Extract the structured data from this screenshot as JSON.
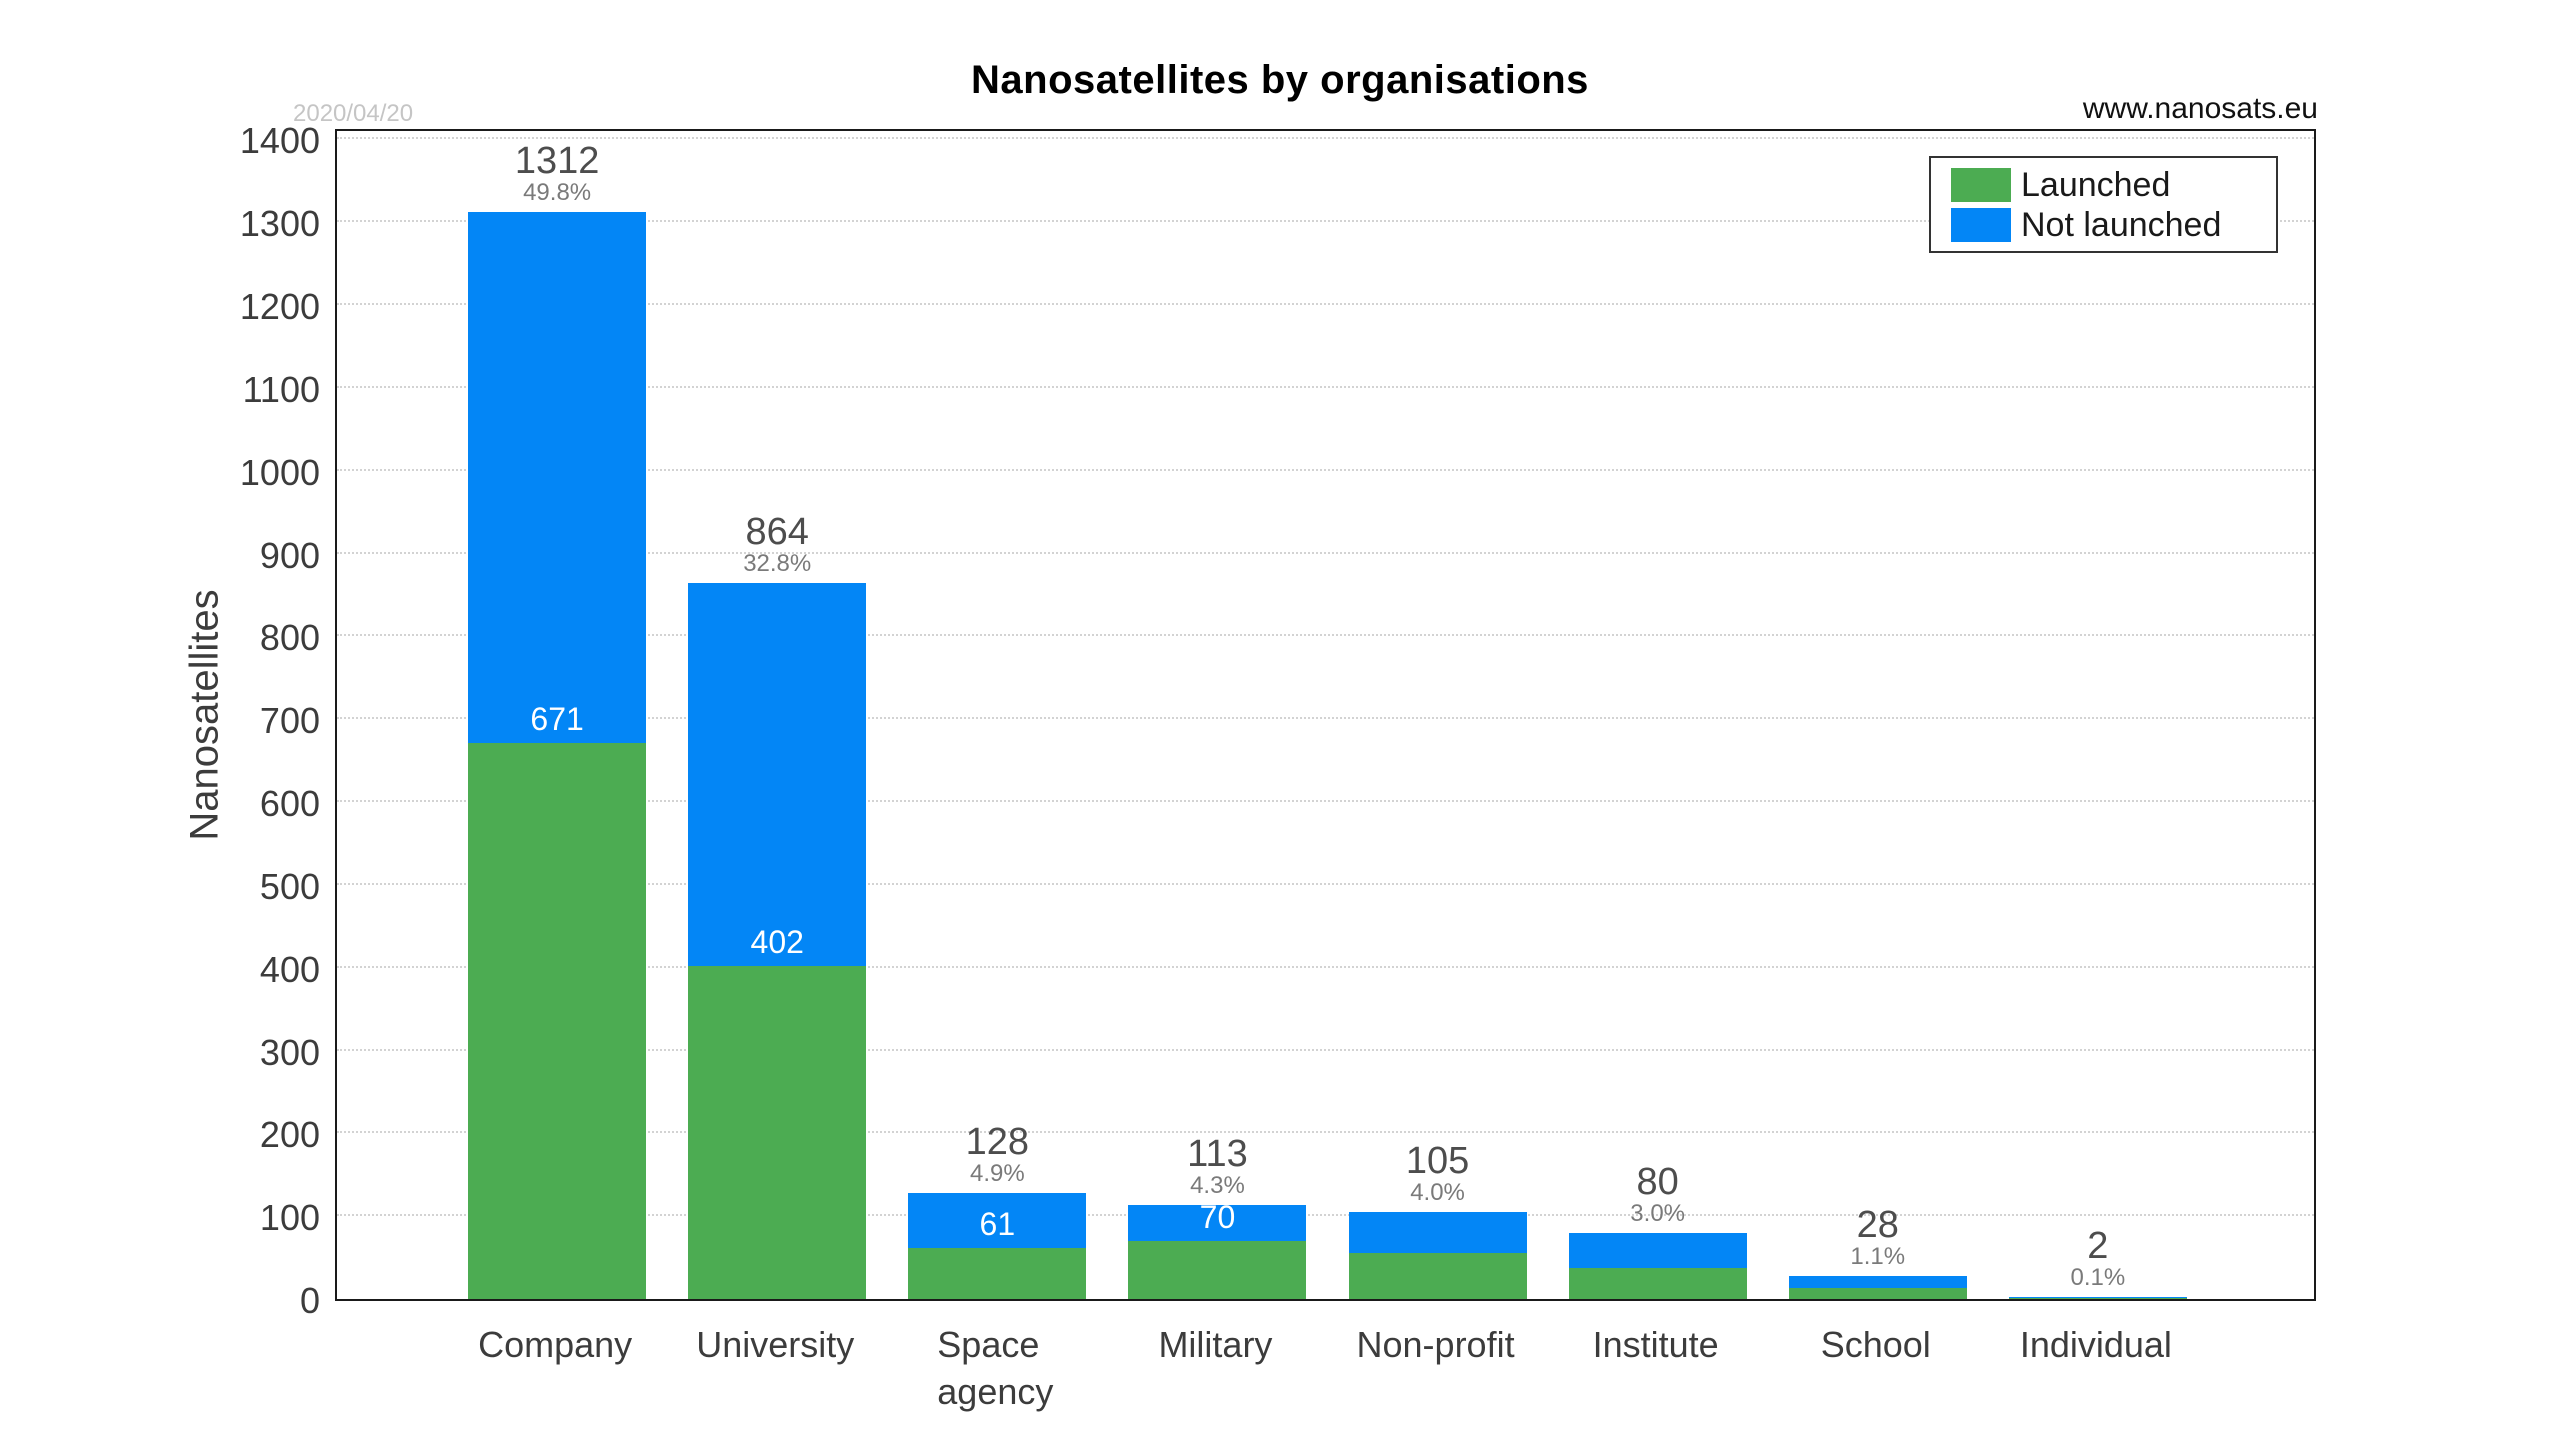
{
  "title": "Nanosatellites by organisations",
  "watermark": "www.nanosats.eu",
  "date_stamp": "2020/04/20",
  "colors": {
    "launched_green": "#4CAC52",
    "not_launched_blue": "#0386F6",
    "grid": "#d3d3d3",
    "axis_border": "#1a1a1a",
    "total_label": "#4d4d4d",
    "percent_label": "#7a7a7a",
    "tick_label": "#3c3c3c",
    "date_stamp": "#c5c5c5"
  },
  "legend": {
    "position": "top-right",
    "items": [
      {
        "label": "Launched",
        "color": "#4CAC52"
      },
      {
        "label": "Not launched",
        "color": "#0386F6"
      }
    ]
  },
  "chart_data": {
    "type": "bar",
    "stacked": true,
    "title": "Nanosatellites by organisations",
    "xlabel": "",
    "ylabel": "Nanosatellites",
    "ylim": [
      0,
      1415
    ],
    "y_ticks": [
      0,
      100,
      200,
      300,
      400,
      500,
      600,
      700,
      800,
      900,
      1000,
      1100,
      1200,
      1300,
      1400
    ],
    "grid": "horizontal-dotted",
    "categories": [
      "Company",
      "University",
      "Space agency",
      "Military",
      "Non-profit",
      "Institute",
      "School",
      "Individual"
    ],
    "category_tick_lines": [
      "Company",
      "University",
      "Space\nagency",
      "Military",
      "Non-profit",
      "Institute",
      "School",
      "Individual"
    ],
    "series": [
      {
        "name": "Launched",
        "color": "#4CAC52",
        "values": [
          671,
          402,
          61,
          70,
          56,
          38,
          13,
          1
        ]
      },
      {
        "name": "Not launched",
        "color": "#0386F6",
        "values": [
          641,
          462,
          67,
          43,
          49,
          42,
          15,
          1
        ]
      }
    ],
    "launched_estimated_from_pixels": [
      false,
      false,
      false,
      false,
      true,
      true,
      true,
      true
    ],
    "totals": [
      1312,
      864,
      128,
      113,
      105,
      80,
      28,
      2
    ],
    "total_labels": [
      "1312",
      "864",
      "128",
      "113",
      "105",
      "80",
      "28",
      "2"
    ],
    "percent_labels": [
      "49.8%",
      "32.8%",
      "4.9%",
      "4.3%",
      "4.0%",
      "3.0%",
      "1.1%",
      "0.1%"
    ],
    "inner_launched_labels": [
      "671",
      "402",
      "61",
      "70",
      "",
      "",
      "",
      ""
    ]
  }
}
